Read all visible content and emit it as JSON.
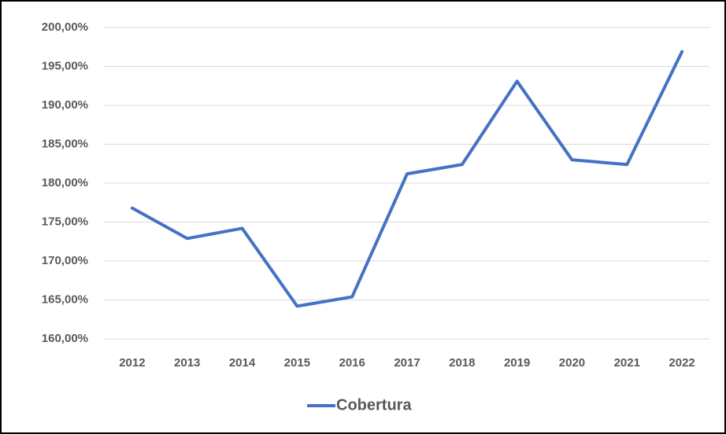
{
  "chart_data": {
    "type": "line",
    "categories": [
      "2012",
      "2013",
      "2014",
      "2015",
      "2016",
      "2017",
      "2018",
      "2019",
      "2020",
      "2021",
      "2022"
    ],
    "series": [
      {
        "name": "Cobertura",
        "color": "#4472c4",
        "values": [
          176.8,
          172.9,
          174.2,
          164.2,
          165.4,
          181.2,
          182.4,
          193.1,
          183.0,
          182.4,
          196.9
        ]
      }
    ],
    "ylim": [
      160,
      200
    ],
    "yticks": [
      {
        "value": 160,
        "label": "160,00%"
      },
      {
        "value": 165,
        "label": "165,00%"
      },
      {
        "value": 170,
        "label": "170,00%"
      },
      {
        "value": 175,
        "label": "175,00%"
      },
      {
        "value": 180,
        "label": "180,00%"
      },
      {
        "value": 185,
        "label": "185,00%"
      },
      {
        "value": 190,
        "label": "190,00%"
      },
      {
        "value": 195,
        "label": "195,00%"
      },
      {
        "value": 200,
        "label": "200,00%"
      }
    ],
    "grid": true,
    "legend": "bottom"
  }
}
